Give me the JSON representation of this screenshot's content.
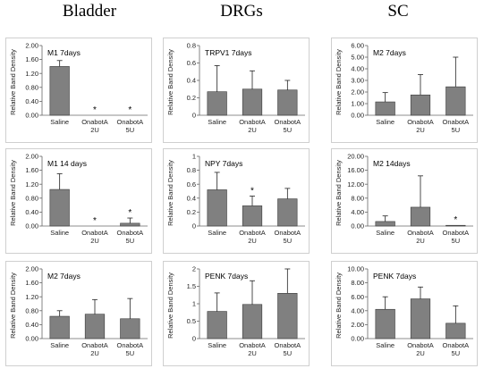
{
  "columns": [
    "Bladder",
    "DRGs",
    "SC"
  ],
  "colors": {
    "bar": "#808080",
    "bar_stroke": "#3a3a3a",
    "axis": "#666666",
    "error": "#222222"
  },
  "chart_data": [
    {
      "type": "bar",
      "title": "M1 7days",
      "ylabel": "Relative Band Density",
      "categories": [
        "Saline",
        "OnabotA 2U",
        "OnabotA 5U"
      ],
      "values": [
        1.4,
        0,
        0
      ],
      "errors": [
        0.17,
        0,
        0
      ],
      "significance": [
        "",
        "*",
        "*"
      ],
      "ylim": [
        0,
        2
      ],
      "yticks": [
        "0.00",
        "0.40",
        "0.80",
        "1.20",
        "1.60",
        "2.00"
      ]
    },
    {
      "type": "bar",
      "title": "TRPV1 7days",
      "ylabel": "Relative Band Density",
      "categories": [
        "Saline",
        "OnabotA 2U",
        "OnabotA 5U"
      ],
      "values": [
        0.27,
        0.3,
        0.29
      ],
      "errors": [
        0.3,
        0.21,
        0.11
      ],
      "significance": [
        "",
        "",
        ""
      ],
      "ylim": [
        0,
        0.8
      ],
      "yticks": [
        "0",
        "0.2",
        "0.4",
        "0.6",
        "0.8"
      ]
    },
    {
      "type": "bar",
      "title": "M2 7days",
      "ylabel": "Relative Band Density",
      "categories": [
        "Saline",
        "OnabotA 2U",
        "OnabotA 5U"
      ],
      "values": [
        1.15,
        1.75,
        2.45
      ],
      "errors": [
        0.8,
        1.75,
        2.55
      ],
      "significance": [
        "",
        "",
        ""
      ],
      "ylim": [
        0,
        6
      ],
      "yticks": [
        "0.00",
        "1.00",
        "2.00",
        "3.00",
        "4.00",
        "5.00",
        "6.00"
      ]
    },
    {
      "type": "bar",
      "title": "M1 14 days",
      "ylabel": "Relative Band Density",
      "categories": [
        "Saline",
        "OnabotA 2U",
        "OnabotA 5U"
      ],
      "values": [
        1.05,
        0,
        0.08
      ],
      "errors": [
        0.45,
        0,
        0.15
      ],
      "significance": [
        "",
        "*",
        "*"
      ],
      "ylim": [
        0,
        2
      ],
      "yticks": [
        "0.00",
        "0.40",
        "0.80",
        "1.20",
        "1.60",
        "2.00"
      ]
    },
    {
      "type": "bar",
      "title": "NPY 7days",
      "ylabel": "Relative Band Density",
      "categories": [
        "Saline",
        "OnabotA 2U",
        "OnabotA 5U"
      ],
      "values": [
        0.52,
        0.29,
        0.39
      ],
      "errors": [
        0.25,
        0.14,
        0.15
      ],
      "significance": [
        "",
        "*",
        ""
      ],
      "ylim": [
        0,
        1
      ],
      "yticks": [
        "0",
        "0.2",
        "0.4",
        "0.6",
        "0.8",
        "1"
      ]
    },
    {
      "type": "bar",
      "title": "M2 14days",
      "ylabel": "Relative Band Density",
      "categories": [
        "Saline",
        "OnabotA 2U",
        "OnabotA 5U"
      ],
      "values": [
        1.3,
        5.4,
        0.2
      ],
      "errors": [
        1.6,
        9.0,
        0
      ],
      "significance": [
        "",
        "",
        "*"
      ],
      "ylim": [
        0,
        20
      ],
      "yticks": [
        "0.00",
        "4.00",
        "8.00",
        "12.00",
        "16.00",
        "20.00"
      ]
    },
    {
      "type": "bar",
      "title": "M2 7days",
      "ylabel": "Relative Band Density",
      "categories": [
        "Saline",
        "OnabotA 2U",
        "OnabotA 5U"
      ],
      "values": [
        0.64,
        0.7,
        0.57
      ],
      "errors": [
        0.16,
        0.42,
        0.58
      ],
      "significance": [
        "",
        "",
        ""
      ],
      "ylim": [
        0,
        2
      ],
      "yticks": [
        "0.00",
        "0.40",
        "0.80",
        "1.20",
        "1.60",
        "2.00"
      ]
    },
    {
      "type": "bar",
      "title": "PENK 7days",
      "ylabel": "Relative Band Density",
      "categories": [
        "Saline",
        "OnabotA 2U",
        "OnabotA 5U"
      ],
      "values": [
        0.78,
        0.98,
        1.3
      ],
      "errors": [
        0.53,
        0.68,
        0.72
      ],
      "significance": [
        "",
        "",
        ""
      ],
      "ylim": [
        0,
        2
      ],
      "yticks": [
        "0",
        "0.5",
        "1",
        "1.5",
        "2"
      ]
    },
    {
      "type": "bar",
      "title": "PENK 7days",
      "ylabel": "Relative Band Density",
      "categories": [
        "Saline",
        "OnabotA 2U",
        "OnabotA 5U"
      ],
      "values": [
        4.2,
        5.7,
        2.2
      ],
      "errors": [
        1.8,
        1.7,
        2.5
      ],
      "significance": [
        "",
        "",
        ""
      ],
      "ylim": [
        0,
        10
      ],
      "yticks": [
        "0.00",
        "2.00",
        "4.00",
        "6.00",
        "8.00",
        "10.00"
      ]
    }
  ]
}
